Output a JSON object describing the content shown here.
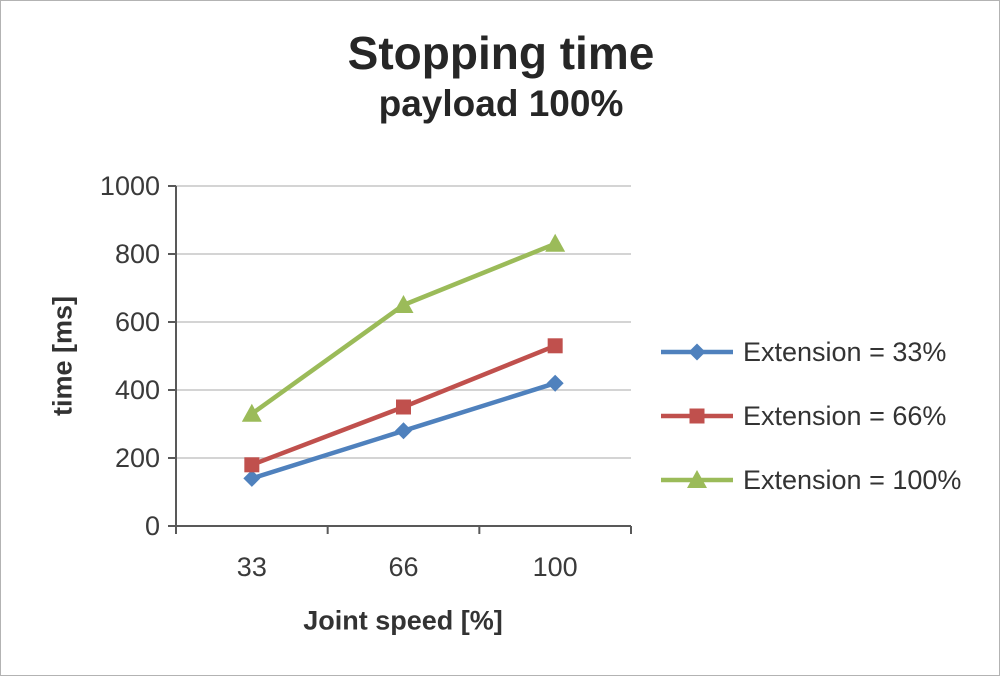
{
  "chart": {
    "title": "Stopping time",
    "subtitle": "payload 100%",
    "xlabel": "Joint speed [%]",
    "ylabel": "time [ms]"
  },
  "chart_data": {
    "type": "line",
    "title": "Stopping time",
    "subtitle": "payload 100%",
    "xlabel": "Joint speed [%]",
    "ylabel": "time [ms]",
    "categories": [
      "33",
      "66",
      "100"
    ],
    "series": [
      {
        "name": "Extension = 33%",
        "values": [
          140,
          280,
          420
        ],
        "color": "#4F81BD",
        "marker": "diamond"
      },
      {
        "name": "Extension = 66%",
        "values": [
          180,
          350,
          530
        ],
        "color": "#C0504D",
        "marker": "square"
      },
      {
        "name": "Extension = 100%",
        "values": [
          330,
          650,
          830
        ],
        "color": "#9BBB59",
        "marker": "triangle"
      }
    ],
    "ylim": [
      0,
      1000
    ],
    "ytick_step": 200,
    "yticks": [
      "0",
      "200",
      "400",
      "600",
      "800",
      "1000"
    ],
    "grid": true,
    "legend_position": "right",
    "colors": {
      "axis": "#595959",
      "gridline": "#c6c6c6",
      "text": "#3a3a3a"
    }
  }
}
